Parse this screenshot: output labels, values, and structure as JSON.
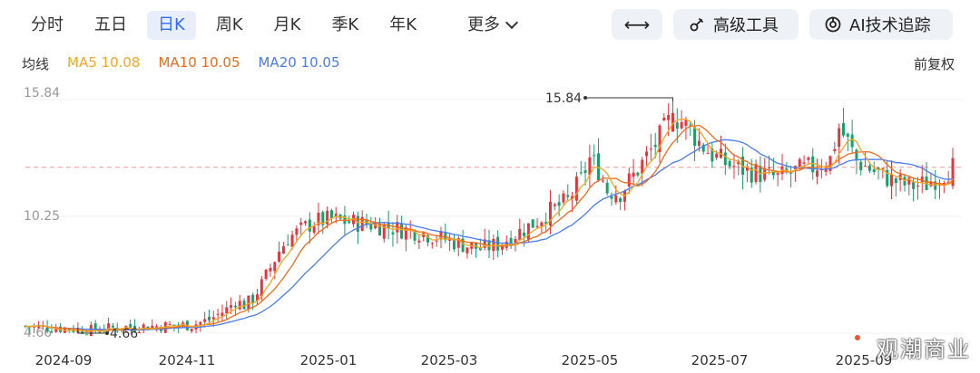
{
  "tabs": [
    {
      "label": "分时",
      "active": false
    },
    {
      "label": "五日",
      "active": false
    },
    {
      "label": "日K",
      "active": true
    },
    {
      "label": "周K",
      "active": false
    },
    {
      "label": "月K",
      "active": false
    },
    {
      "label": "季K",
      "active": false
    },
    {
      "label": "年K",
      "active": false
    }
  ],
  "more_label": "更多",
  "tools": {
    "fit_icon": "⟷",
    "adv_label": "高级工具",
    "adv_icon": "tools-icon",
    "ai_label": "AI技术追踪",
    "ai_icon": "ai-icon"
  },
  "ma": {
    "label": "均线",
    "items": [
      {
        "text": "MA5 10.08",
        "color": "#f5a623"
      },
      {
        "text": "MA10 10.05",
        "color": "#f06a1b"
      },
      {
        "text": "MA20 10.05",
        "color": "#4a7cf0"
      }
    ]
  },
  "adjust_label": "前复权",
  "watermark": "观潮商业",
  "chart_data": {
    "type": "candlestick",
    "y_ticks": [
      "15.84",
      "10.25",
      "4.66"
    ],
    "ylim": [
      4.66,
      15.84
    ],
    "x_labels": [
      "2024-09",
      "2024-11",
      "2025-01",
      "2025-03",
      "2025-05",
      "2025-07",
      "2025-09"
    ],
    "annotations": [
      {
        "text": "15.84",
        "kind": "high"
      },
      {
        "text": "4.66",
        "kind": "low"
      }
    ],
    "current_price_line": 12.6,
    "up_color": "#e8343c",
    "down_color": "#1a9e6a",
    "close_path": [
      [
        0,
        5.0
      ],
      [
        8,
        4.9
      ],
      [
        15,
        4.8
      ],
      [
        22,
        4.95
      ],
      [
        30,
        5.0
      ],
      [
        38,
        5.05
      ],
      [
        42,
        5.3
      ],
      [
        46,
        5.8
      ],
      [
        48,
        6.2
      ],
      [
        50,
        6.0
      ],
      [
        52,
        6.3
      ],
      [
        54,
        7.0
      ],
      [
        56,
        7.8
      ],
      [
        58,
        8.6
      ],
      [
        60,
        9.2
      ],
      [
        63,
        9.6
      ],
      [
        66,
        10.0
      ],
      [
        70,
        10.1
      ],
      [
        73,
        10.0
      ],
      [
        78,
        9.9
      ],
      [
        84,
        9.7
      ],
      [
        90,
        9.5
      ],
      [
        95,
        9.2
      ],
      [
        100,
        8.9
      ],
      [
        104,
        8.7
      ],
      [
        108,
        8.9
      ],
      [
        112,
        9.4
      ],
      [
        116,
        9.9
      ],
      [
        120,
        10.5
      ],
      [
        124,
        11.0
      ],
      [
        127,
        12.0
      ],
      [
        129,
        13.0
      ],
      [
        131,
        12.5
      ],
      [
        133,
        11.5
      ],
      [
        136,
        11.4
      ],
      [
        139,
        12.2
      ],
      [
        142,
        13.1
      ],
      [
        145,
        14.0
      ],
      [
        148,
        15.1
      ],
      [
        150,
        14.8
      ],
      [
        152,
        14.4
      ],
      [
        154,
        13.8
      ],
      [
        157,
        13.2
      ],
      [
        160,
        12.8
      ],
      [
        164,
        12.5
      ],
      [
        168,
        12.3
      ],
      [
        172,
        12.1
      ],
      [
        176,
        12.4
      ],
      [
        180,
        12.6
      ],
      [
        184,
        13.0
      ],
      [
        186,
        14.5
      ],
      [
        188,
        13.8
      ],
      [
        190,
        12.9
      ],
      [
        194,
        12.4
      ],
      [
        198,
        12.0
      ],
      [
        202,
        11.7
      ],
      [
        206,
        11.8
      ],
      [
        209,
        12.2
      ],
      [
        212,
        12.6
      ]
    ]
  }
}
